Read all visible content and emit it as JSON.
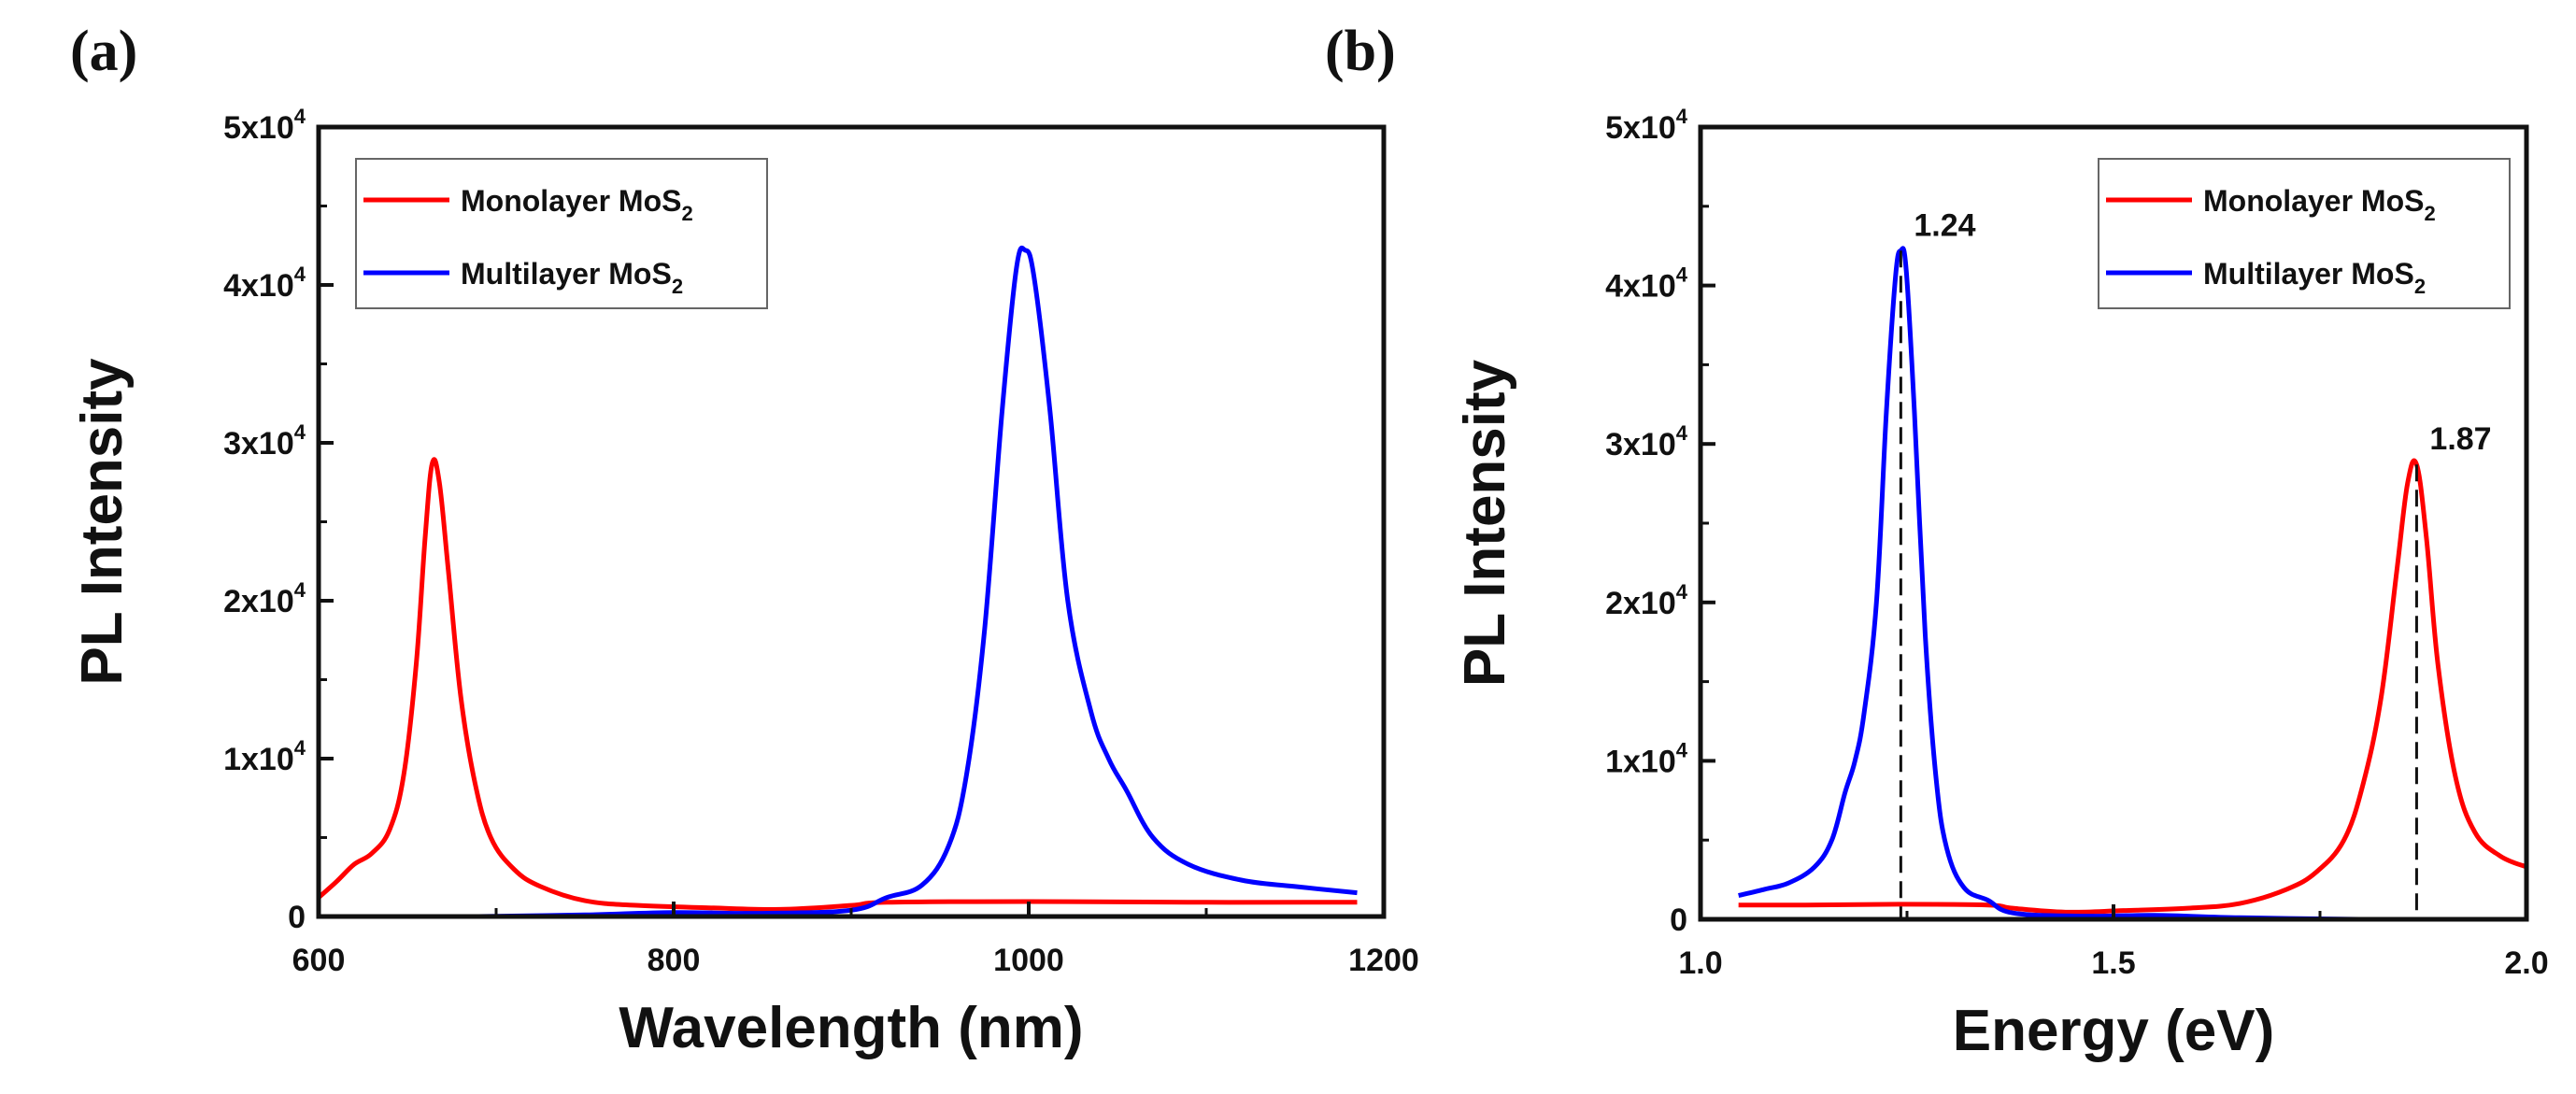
{
  "chart_data": [
    {
      "type": "line",
      "panel_label": "(a)",
      "xlabel": "Wavelength (nm)",
      "ylabel": "PL Intensity",
      "xlim": [
        600,
        1200
      ],
      "ylim": [
        0,
        50000
      ],
      "xticks": [
        600,
        800,
        1000,
        1200
      ],
      "xtick_labels": [
        "600",
        "800",
        "1000",
        "1200"
      ],
      "xminor": [
        700,
        900,
        1100
      ],
      "yticks": [
        0,
        10000,
        20000,
        30000,
        40000,
        50000
      ],
      "ytick_labels": [
        [
          "0",
          ""
        ],
        [
          "1x10",
          "4"
        ],
        [
          "2x10",
          "4"
        ],
        [
          "3x10",
          "4"
        ],
        [
          "4x10",
          "4"
        ],
        [
          "5x10",
          "4"
        ]
      ],
      "grid": false,
      "legend_placement": "top-left",
      "series": [
        {
          "name": "Monolayer MoS",
          "name_sub": "2",
          "color": "#ff0000",
          "x": [
            600,
            610,
            620,
            630,
            640,
            648,
            655,
            660,
            664,
            668,
            673,
            680,
            688,
            697,
            710,
            725,
            750,
            780,
            820,
            860,
            900,
            920,
            1000,
            1100,
            1185
          ],
          "y": [
            1200,
            2200,
            3300,
            4000,
            5500,
            9000,
            16000,
            24000,
            28700,
            27500,
            22000,
            14000,
            8500,
            5000,
            3000,
            1900,
            1000,
            700,
            550,
            450,
            700,
            900,
            950,
            900,
            900
          ]
        },
        {
          "name": "Multilayer MoS",
          "name_sub": "2",
          "color": "#0000ff",
          "x": [
            690,
            750,
            800,
            850,
            900,
            920,
            940,
            955,
            965,
            975,
            985,
            993,
            998,
            1003,
            1012,
            1022,
            1035,
            1045,
            1055,
            1070,
            1090,
            1120,
            1150,
            1185
          ],
          "y": [
            0,
            100,
            250,
            200,
            400,
            1200,
            2000,
            4500,
            9000,
            18000,
            32000,
            41000,
            42200,
            40500,
            32000,
            20000,
            13000,
            10000,
            8000,
            5000,
            3300,
            2300,
            1900,
            1500
          ]
        }
      ],
      "annotations": []
    },
    {
      "type": "line",
      "panel_label": "(b)",
      "xlabel": "Energy (eV)",
      "ylabel": "PL Intensity",
      "xlim": [
        1.0,
        2.0
      ],
      "ylim": [
        0,
        50000
      ],
      "xticks": [
        1.0,
        1.5,
        2.0
      ],
      "xtick_labels": [
        "1.0",
        "1.5",
        "2.0"
      ],
      "xminor": [
        1.25,
        1.75
      ],
      "yticks": [
        0,
        10000,
        20000,
        30000,
        40000,
        50000
      ],
      "ytick_labels": [
        [
          "0",
          ""
        ],
        [
          "1x10",
          "4"
        ],
        [
          "2x10",
          "4"
        ],
        [
          "3x10",
          "4"
        ],
        [
          "4x10",
          "4"
        ],
        [
          "5x10",
          "4"
        ]
      ],
      "grid": false,
      "legend_placement": "top-right",
      "series": [
        {
          "name": "Monolayer MoS",
          "name_sub": "2",
          "color": "#ff0000",
          "x": [
            1.046,
            1.127,
            1.24,
            1.348,
            1.378,
            1.442,
            1.512,
            1.59,
            1.653,
            1.71,
            1.746,
            1.779,
            1.802,
            1.824,
            1.843,
            1.856,
            1.867,
            1.879,
            1.893,
            1.914,
            1.9375,
            1.968,
            2.0
          ],
          "y": [
            900,
            900,
            950,
            900,
            700,
            450,
            550,
            700,
            1000,
            1900,
            3000,
            5000,
            8500,
            14000,
            22000,
            27500,
            28700,
            24000,
            16000,
            9000,
            5500,
            4000,
            3300
          ]
        },
        {
          "name": "Multilayer MoS",
          "name_sub": "2",
          "color": "#0000ff",
          "x": [
            1.046,
            1.078,
            1.107,
            1.138,
            1.159,
            1.175,
            1.187,
            1.198,
            1.213,
            1.225,
            1.236,
            1.2425,
            1.249,
            1.259,
            1.272,
            1.285,
            1.298,
            1.319,
            1.348,
            1.378,
            1.459,
            1.55,
            1.653,
            1.797
          ],
          "y": [
            1500,
            1900,
            2300,
            3300,
            5000,
            8000,
            10000,
            13000,
            20000,
            32000,
            40500,
            42200,
            41000,
            32000,
            18000,
            9000,
            4500,
            2000,
            1200,
            400,
            200,
            250,
            100,
            0
          ]
        }
      ],
      "annotations": [
        {
          "text": "1.24",
          "x": 1.2425,
          "y": 42200
        },
        {
          "text": "1.87",
          "x": 1.867,
          "y": 28700
        }
      ]
    }
  ]
}
